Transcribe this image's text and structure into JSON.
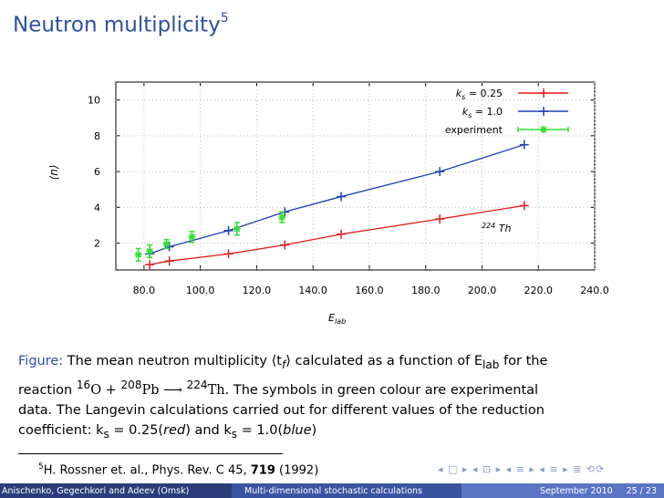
{
  "slide": {
    "title": "Neutron multiplicity",
    "title_ref": "5"
  },
  "chart_data": {
    "type": "line",
    "ylabel": "⟨n⟩",
    "xlabel": "E",
    "xlabel_sub": "lab",
    "xlim": [
      70,
      240
    ],
    "ylim": [
      0.5,
      11
    ],
    "x_ticks": [
      "80.0",
      "100.0",
      "120.0",
      "140.0",
      "160.0",
      "180.0",
      "200.0",
      "220.0",
      "240.0"
    ],
    "y_ticks": [
      "2",
      "4",
      "6",
      "8",
      "10"
    ],
    "annotation": "224 Th",
    "series": [
      {
        "name": "ks = 0.25",
        "color": "#e41a1c",
        "marker": "plus",
        "x": [
          82,
          89,
          110,
          130,
          150,
          185,
          215
        ],
        "y": [
          0.8,
          1.0,
          1.4,
          1.9,
          2.5,
          3.35,
          4.1
        ]
      },
      {
        "name": "ks = 1.0",
        "color": "#1f3fb4",
        "marker": "plus",
        "x": [
          82,
          89,
          110,
          130,
          150,
          185,
          215
        ],
        "y": [
          1.4,
          1.8,
          2.7,
          3.75,
          4.6,
          6.0,
          7.5
        ]
      },
      {
        "name": "experiment",
        "color": "#33dd33",
        "marker": "star",
        "x": [
          78,
          82,
          88,
          97,
          113,
          129
        ],
        "y": [
          1.35,
          1.55,
          1.95,
          2.35,
          2.8,
          3.45
        ],
        "err": [
          0.35,
          0.35,
          0.25,
          0.3,
          0.35,
          0.3
        ]
      }
    ]
  },
  "caption": {
    "label": "Figure:",
    "line1": "The mean neutron multiplicity ⟨t",
    "line1_sub": "f",
    "line1b": "⟩ calculated as a function of E",
    "line1_sub2": "lab",
    "line1c": " for the",
    "line2a": "reaction ",
    "o_mass": "16",
    "o": "O + ",
    "pb_mass": "208",
    "pb": "Pb ⟶ ",
    "th_mass": "224",
    "th": "Th.",
    "line2b": " The symbols in green colour are experimental",
    "line3": "data. The Langevin calculations carried out for different values of the reduction",
    "line4a": "coefficient: k",
    "line4_sub": "s",
    "line4b": " = 0.25(",
    "line4_red": "red",
    "line4c": ") and k",
    "line4_sub2": "s",
    "line4d": " = 1.0(",
    "line4_blue": "blue",
    "line4e": ")"
  },
  "footnote": {
    "num": "5",
    "text": "H. Rossner et. al., Phys. Rev. C 45, ",
    "volume": "719",
    "year": " (1992)"
  },
  "nav": "◂ □ ▸ ◂ ⊡ ▸ ◂ ≡ ▸ ◂ ≡ ▸ ≣ ⟲⟳",
  "footer": {
    "authors": "Anischenko, Gegechkori and Adeev (Omsk)",
    "talk": "Multi-dimensional stochastic calculations",
    "date": "September 2010",
    "page": "25 / 23"
  }
}
